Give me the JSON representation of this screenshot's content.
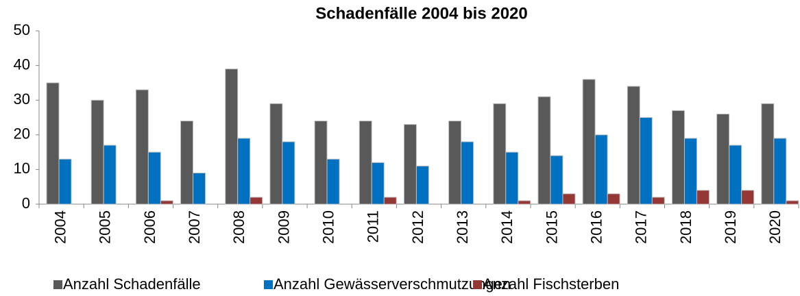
{
  "chart_data": {
    "type": "bar",
    "title": "Schadenfälle 2004 bis 2020",
    "categories": [
      "2004",
      "2005",
      "2006",
      "2007",
      "2008",
      "2009",
      "2010",
      "2011",
      "2012",
      "2013",
      "2014",
      "2015",
      "2016",
      "2017",
      "2018",
      "2019",
      "2020"
    ],
    "series": [
      {
        "name": "Anzahl Schadenfälle",
        "color": "#595959",
        "values": [
          35,
          30,
          33,
          24,
          39,
          29,
          24,
          24,
          23,
          24,
          29,
          31,
          36,
          34,
          27,
          26,
          29
        ]
      },
      {
        "name": "Anzahl Gewässerverschmutzungen",
        "color": "#0070c0",
        "values": [
          13,
          17,
          15,
          9,
          19,
          18,
          13,
          12,
          11,
          18,
          15,
          14,
          20,
          25,
          19,
          17,
          19
        ]
      },
      {
        "name": "Anzahl Fischsterben",
        "color": "#953735",
        "values": [
          0,
          0,
          1,
          0,
          2,
          0,
          0,
          2,
          0,
          0,
          1,
          3,
          3,
          2,
          4,
          4,
          1
        ]
      }
    ],
    "ylim": [
      0,
      50
    ],
    "yticks": [
      0,
      10,
      20,
      30,
      40,
      50
    ],
    "grid": false,
    "legend": "bottom"
  }
}
